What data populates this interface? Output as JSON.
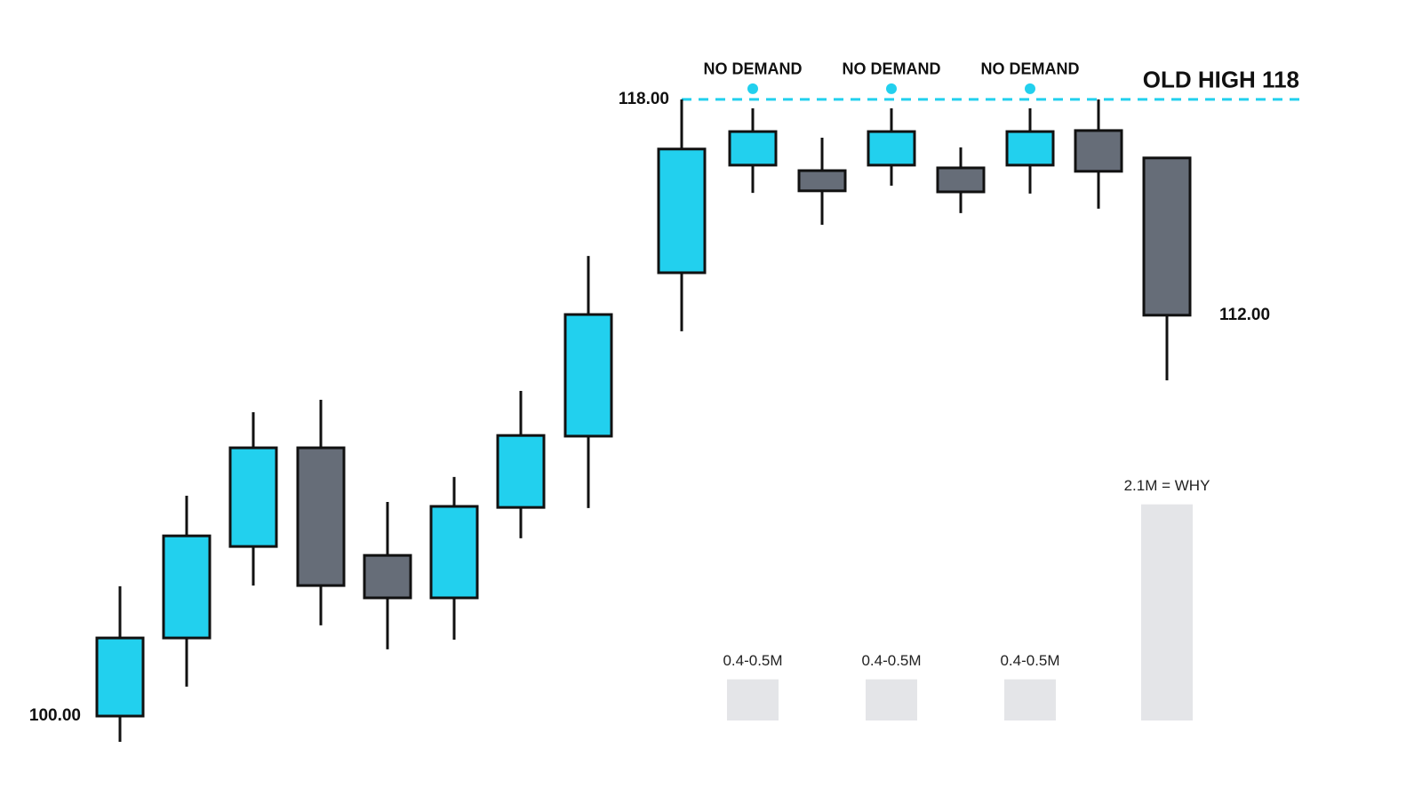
{
  "chart_data": {
    "type": "candlestick",
    "open": [
      100,
      102.28,
      104.95,
      107.83,
      104.69,
      103.45,
      106.09,
      108.17,
      112.94,
      116.08,
      115.92,
      116.08,
      116.0,
      116.08,
      117.09,
      116.29
    ],
    "high": [
      103.79,
      106.43,
      108.87,
      109.23,
      106.25,
      106.98,
      109.49,
      113.43,
      118,
      117.74,
      116.88,
      117.74,
      116.6,
      117.74,
      118,
      116.29
    ],
    "low": [
      99.25,
      100.86,
      103.81,
      102.65,
      101.95,
      102.23,
      105.19,
      106.07,
      111.23,
      115.27,
      114.34,
      115.48,
      114.68,
      115.25,
      114.81,
      109.8
    ],
    "close": [
      102.28,
      105.26,
      107.83,
      103.81,
      103.45,
      106.12,
      108.19,
      111.72,
      116.55,
      117.06,
      115.33,
      117.06,
      115.3,
      117.06,
      115.9,
      111.7
    ],
    "up_color": "#22d0ee",
    "down_color": "#666d78",
    "ylim": [
      97.2,
      120.9
    ],
    "volume": [
      null,
      null,
      null,
      null,
      null,
      null,
      null,
      null,
      null,
      0.4,
      null,
      0.4,
      null,
      0.4,
      null,
      2.1
    ],
    "volume_labels": [
      null,
      null,
      null,
      null,
      null,
      null,
      null,
      null,
      null,
      "0.4-0.5M",
      null,
      "0.4-0.5M",
      null,
      "0.4-0.5M",
      null,
      "2.1M = WHY"
    ],
    "volume_color": "#e4e5e8",
    "volume_lim": [
      0,
      7
    ],
    "signals": [
      null,
      null,
      null,
      null,
      null,
      null,
      null,
      null,
      null,
      "NO DEMAND",
      null,
      "NO DEMAND",
      null,
      "NO DEMAND",
      null,
      null
    ],
    "level": {
      "value": 118,
      "label": "OLD HIGH 118",
      "color": "#22d0ee"
    },
    "price_labels": [
      "100.00",
      "118.00",
      "112.00"
    ]
  }
}
